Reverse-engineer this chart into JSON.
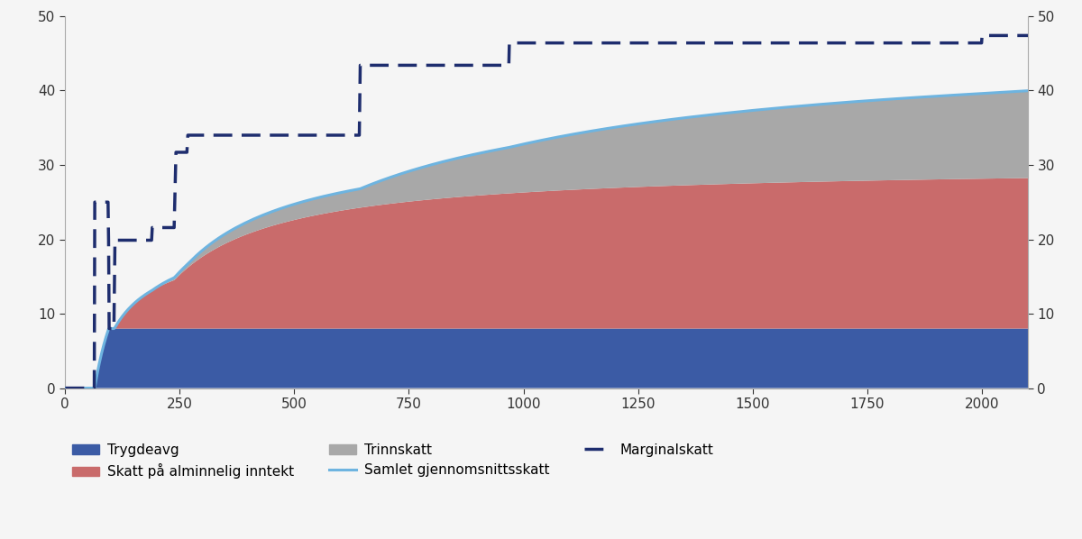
{
  "xlim": [
    0,
    2100
  ],
  "ylim": [
    0,
    50
  ],
  "xticks": [
    0,
    250,
    500,
    750,
    1000,
    1250,
    1500,
    1750,
    2000
  ],
  "yticks": [
    0,
    10,
    20,
    30,
    40,
    50
  ],
  "colors": {
    "trygdeavg": "#3B5BA5",
    "alminnelig": "#C96B6B",
    "trinnskatt": "#A8A8A8",
    "gjennomsnitt_line": "#6EB4E0",
    "marginalskatt": "#1E2D6E"
  },
  "background_color": "#f5f5f5",
  "figsize": [
    12.0,
    5.98
  ]
}
